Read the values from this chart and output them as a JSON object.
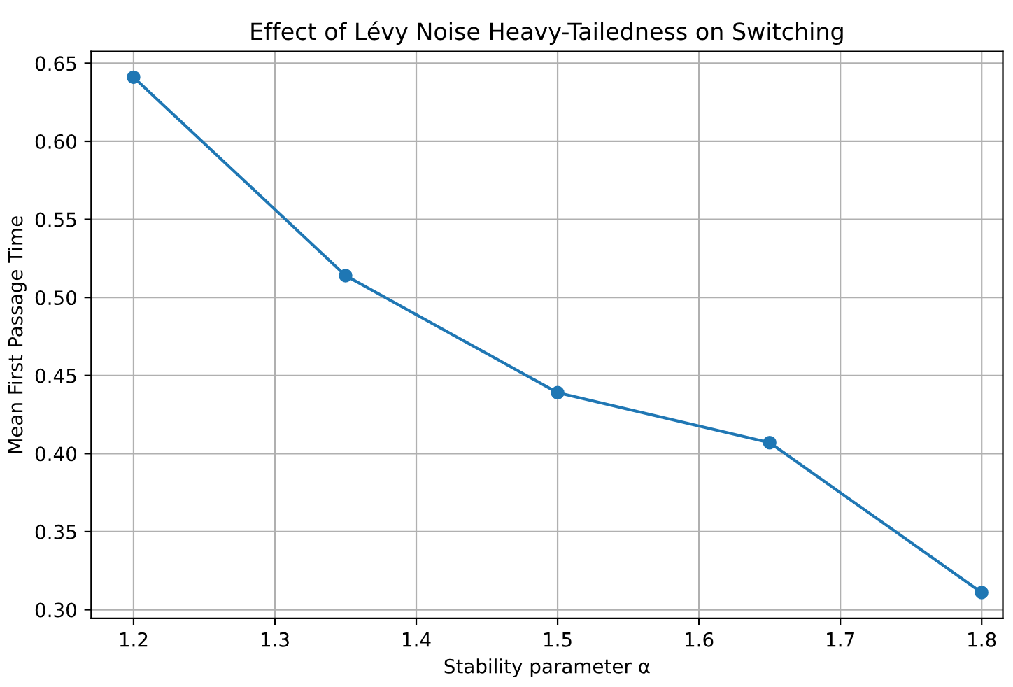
{
  "chart_data": {
    "type": "line",
    "title": "Effect of Lévy Noise Heavy-Tailedness on Switching",
    "xlabel": "Stability parameter α",
    "ylabel": "Mean First Passage Time",
    "x": [
      1.2,
      1.35,
      1.5,
      1.65,
      1.8
    ],
    "series": [
      {
        "color": "#1f77b4",
        "values": [
          0.641,
          0.514,
          0.439,
          0.407,
          0.311
        ]
      }
    ],
    "xlim": [
      1.17,
      1.815
    ],
    "xticks": [
      1.2,
      1.3,
      1.4,
      1.5,
      1.6,
      1.7,
      1.8
    ],
    "ylim": [
      0.2945,
      0.6575
    ],
    "yticks": [
      {
        "value": 0.3,
        "label": "0.30"
      },
      0.35,
      {
        "value": 0.4,
        "label": "0.40"
      },
      0.45,
      {
        "value": 0.5,
        "label": "0.50"
      },
      0.55,
      {
        "value": 0.6,
        "label": "0.60"
      },
      0.65
    ],
    "grid": true,
    "marker": "circle",
    "line_style": "solid"
  }
}
